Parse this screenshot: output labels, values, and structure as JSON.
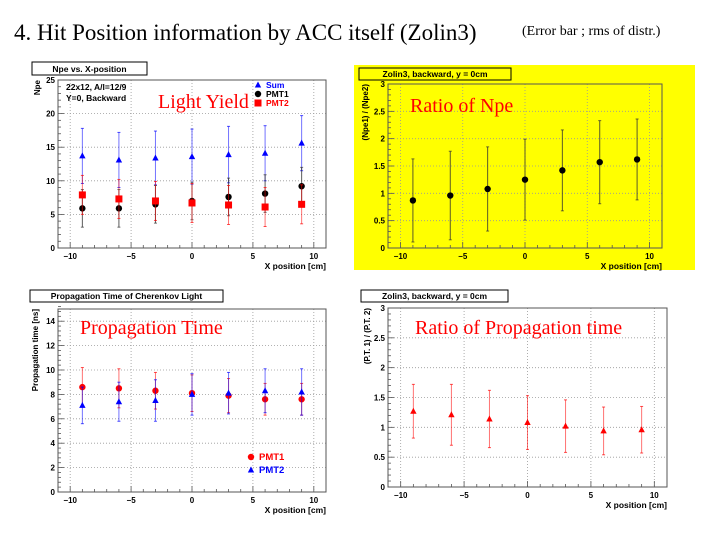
{
  "slide": {
    "title": "4. Hit Position information by ACC itself (Zolin3)",
    "note": "(Error bar ; rms of distr.)"
  },
  "colors": {
    "red": "#ff0000",
    "blue": "#0000ff",
    "black": "#000000",
    "highlight_yellow": "#ffff00"
  },
  "chart_data": [
    {
      "id": "light-yield",
      "type": "scatter",
      "title": "Npe vs. X-position",
      "annotation": "Light Yield",
      "info_text": [
        "22x12, A/l=12/9",
        "Y=0, Backward"
      ],
      "xlabel": "X position [cm]",
      "ylabel": "Npe",
      "xlim": [
        -11,
        11
      ],
      "ylim": [
        0,
        25
      ],
      "xticks": [
        -10,
        -5,
        0,
        5,
        10
      ],
      "yticks": [
        0,
        5,
        10,
        15,
        20,
        25
      ],
      "grid": true,
      "legend_position": "top-right",
      "background": "#ffffff",
      "x": [
        -9,
        -6,
        -3,
        0,
        3,
        6,
        9
      ],
      "series": [
        {
          "name": "Sum",
          "color": "#0000ff",
          "marker": "triangle",
          "values": [
            13.7,
            13.1,
            13.4,
            13.6,
            13.9,
            14.1,
            15.6
          ],
          "errors": [
            4.1,
            4.1,
            4.0,
            4.1,
            4.2,
            4.1,
            4.1
          ]
        },
        {
          "name": "PMT1",
          "color": "#000000",
          "marker": "circle",
          "values": [
            5.9,
            5.9,
            6.5,
            7.0,
            7.6,
            8.1,
            9.2
          ],
          "errors": [
            2.8,
            2.8,
            2.8,
            2.8,
            2.8,
            2.8,
            2.8
          ]
        },
        {
          "name": "PMT2",
          "color": "#ff0000",
          "marker": "square",
          "values": [
            7.9,
            7.3,
            7.0,
            6.7,
            6.4,
            6.1,
            6.5
          ],
          "errors": [
            2.9,
            2.9,
            2.9,
            2.9,
            2.9,
            2.9,
            2.9
          ]
        }
      ]
    },
    {
      "id": "ratio-npe",
      "type": "scatter",
      "title": "Zolin3, backward, y = 0cm",
      "annotation": "Ratio of Npe",
      "xlabel": "X position [cm]",
      "ylabel": "(Npe1) / (Npe2)",
      "xlim": [
        -11,
        11
      ],
      "ylim": [
        0,
        3
      ],
      "xticks": [
        -10,
        -5,
        0,
        5,
        10
      ],
      "yticks": [
        0,
        0.5,
        1,
        1.5,
        2,
        2.5,
        3
      ],
      "grid": true,
      "background": "#ffff00",
      "x": [
        -9,
        -6,
        -3,
        0,
        3,
        6,
        9
      ],
      "series": [
        {
          "name": "Npe1/Npe2",
          "color": "#000000",
          "marker": "circle",
          "values": [
            0.87,
            0.96,
            1.08,
            1.25,
            1.42,
            1.57,
            1.62
          ],
          "errors": [
            0.76,
            0.81,
            0.77,
            0.74,
            0.74,
            0.76,
            0.74
          ]
        }
      ]
    },
    {
      "id": "propagation-time",
      "type": "scatter",
      "title": "Propagation Time of Cherenkov Light",
      "annotation": "Propagation Time",
      "xlabel": "X position [cm]",
      "ylabel": "Propagation time [ns]",
      "xlim": [
        -11,
        11
      ],
      "ylim": [
        0,
        15
      ],
      "xticks": [
        -10,
        -5,
        0,
        5,
        10
      ],
      "yticks": [
        0,
        2,
        4,
        6,
        8,
        10,
        12,
        14
      ],
      "grid": true,
      "legend_position": "bottom-right",
      "background": "#ffffff",
      "x": [
        -9,
        -6,
        -3,
        0,
        3,
        6,
        9
      ],
      "series": [
        {
          "name": "PMT1",
          "color": "#ff0000",
          "marker": "circle",
          "values": [
            8.6,
            8.5,
            8.3,
            8.1,
            7.9,
            7.6,
            7.6
          ],
          "errors": [
            1.6,
            1.6,
            1.5,
            1.5,
            1.4,
            1.3,
            1.3
          ]
        },
        {
          "name": "PMT2",
          "color": "#0000ff",
          "marker": "triangle",
          "values": [
            7.1,
            7.4,
            7.5,
            8.0,
            8.1,
            8.3,
            8.2
          ],
          "errors": [
            1.5,
            1.6,
            1.7,
            1.7,
            1.7,
            1.8,
            1.9
          ]
        }
      ]
    },
    {
      "id": "ratio-propagation-time",
      "type": "scatter",
      "title": "Zolin3, backward, y = 0cm",
      "annotation": "Ratio of Propagation time",
      "xlabel": "X position [cm]",
      "ylabel": "(P.T. 1) / (P.T. 2)",
      "xlim": [
        -11,
        11
      ],
      "ylim": [
        0,
        3
      ],
      "xticks": [
        -10,
        -5,
        0,
        5,
        10
      ],
      "yticks": [
        0,
        0.5,
        1,
        1.5,
        2,
        2.5,
        3
      ],
      "grid": true,
      "background": "#ffffff",
      "x": [
        -9,
        -6,
        -3,
        0,
        3,
        6,
        9
      ],
      "series": [
        {
          "name": "PT1/PT2",
          "color": "#ff0000",
          "marker": "triangle",
          "values": [
            1.27,
            1.21,
            1.14,
            1.08,
            1.02,
            0.94,
            0.96
          ],
          "errors": [
            0.45,
            0.51,
            0.48,
            0.45,
            0.44,
            0.4,
            0.39
          ]
        }
      ]
    }
  ]
}
